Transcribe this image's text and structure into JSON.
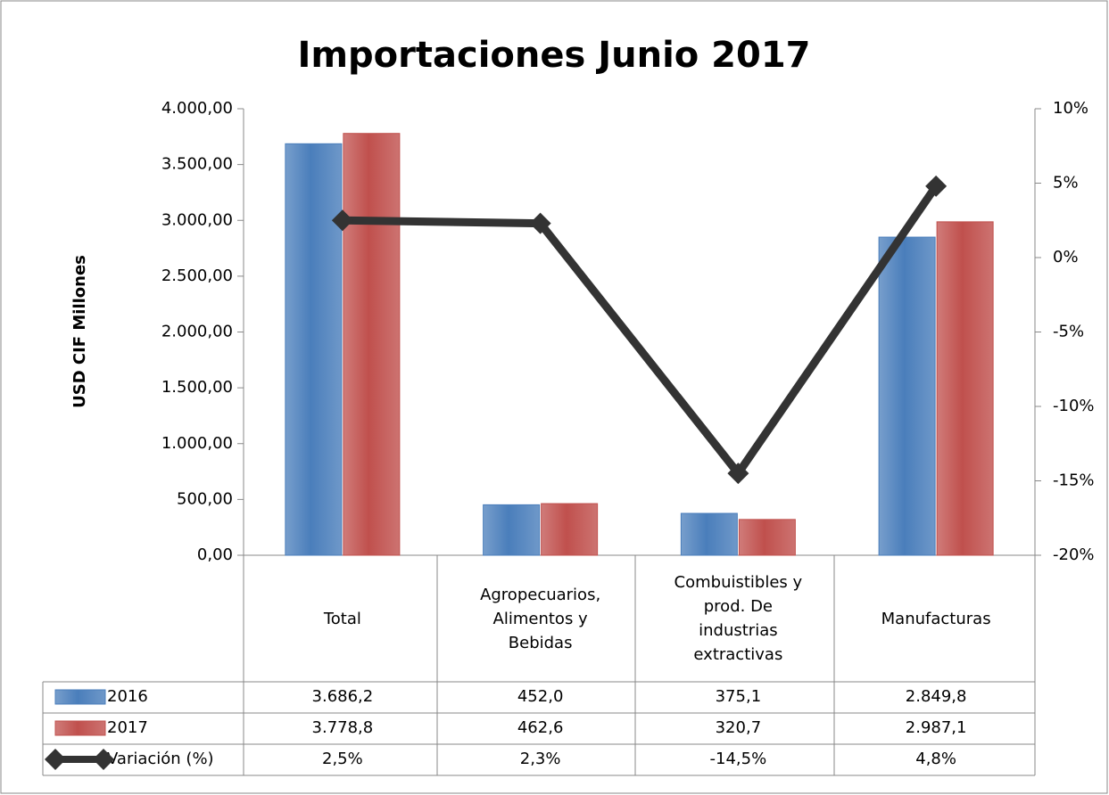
{
  "chart_data": {
    "type": "bar",
    "title": "Importaciones Junio 2017",
    "ylabel": "USD CIF Millones",
    "categories": [
      "Total",
      "Agropecuarios, Alimentos y Bebidas",
      "Combuistibles y prod. De industrias extractivas",
      "Manufacturas"
    ],
    "series": [
      {
        "name": "2016",
        "color": "#4a7ebb",
        "values": [
          3686.2,
          452.0,
          375.1,
          2849.8
        ],
        "value_labels": [
          "3.686,2",
          "452,0",
          "375,1",
          "2.849,8"
        ]
      },
      {
        "name": "2017",
        "color": "#c0504d",
        "values": [
          3778.8,
          462.6,
          320.7,
          2987.1
        ],
        "value_labels": [
          "3.778,8",
          "462,6",
          "320,7",
          "2.987,1"
        ]
      },
      {
        "name": "Variación (%)",
        "type": "line",
        "axis": "y2",
        "color": "#333333",
        "values": [
          2.5,
          2.3,
          -14.5,
          4.8
        ],
        "value_labels": [
          "2,5%",
          "2,3%",
          "-14,5%",
          "4,8%"
        ]
      }
    ],
    "ylim": [
      0,
      4000
    ],
    "yticks": [
      {
        "value": 0,
        "label": "0,00"
      },
      {
        "value": 500,
        "label": "500,00"
      },
      {
        "value": 1000,
        "label": "1.000,00"
      },
      {
        "value": 1500,
        "label": "1.500,00"
      },
      {
        "value": 2000,
        "label": "2.000,00"
      },
      {
        "value": 2500,
        "label": "2.500,00"
      },
      {
        "value": 3000,
        "label": "3.000,00"
      },
      {
        "value": 3500,
        "label": "3.500,00"
      },
      {
        "value": 4000,
        "label": "4.000,00"
      }
    ],
    "y2lim": [
      -20,
      10
    ],
    "y2ticks": [
      {
        "value": -20,
        "label": "-20%"
      },
      {
        "value": -15,
        "label": "-15%"
      },
      {
        "value": -10,
        "label": "-10%"
      },
      {
        "value": -5,
        "label": "-5%"
      },
      {
        "value": 0,
        "label": "0%"
      },
      {
        "value": 5,
        "label": "5%"
      },
      {
        "value": 10,
        "label": "10%"
      }
    ]
  }
}
